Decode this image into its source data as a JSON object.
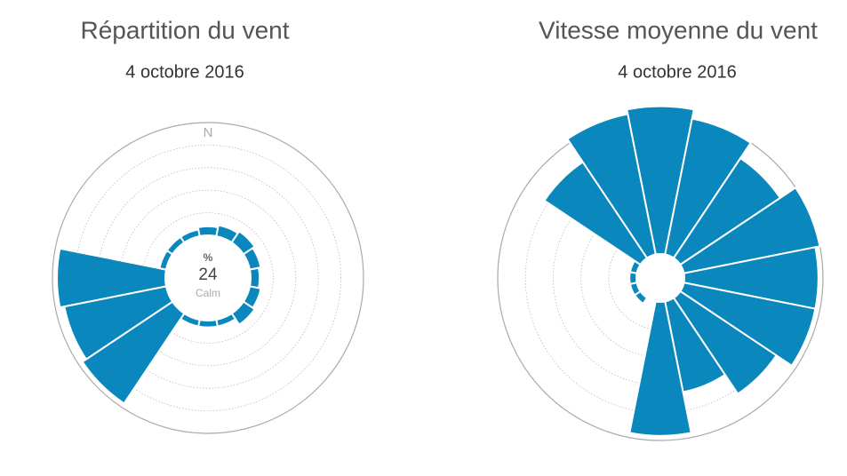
{
  "chart_data": [
    {
      "type": "polar-bar",
      "title": "Répartition du vent",
      "subtitle": "4 octobre 2016",
      "categories": [
        "N",
        null,
        null,
        null,
        null,
        null,
        null,
        null,
        null,
        null,
        null,
        null,
        null,
        null,
        null,
        null
      ],
      "values": [
        2,
        2.5,
        3,
        2.5,
        2,
        2.5,
        3,
        1.5,
        1.5,
        1.5,
        24,
        23,
        24,
        1.5,
        1.5,
        1.5
      ],
      "color": "#0a87bd",
      "ylim": [
        0,
        25
      ],
      "grid": true,
      "center_unit": "%",
      "calm_value": 24,
      "calm_label": "Calm"
    },
    {
      "type": "polar-bar",
      "title": "Vitesse moyenne du vent",
      "subtitle": "4 octobre 2016",
      "values": [
        32,
        30,
        26,
        30,
        29,
        29,
        25,
        20,
        29,
        0,
        1.5,
        1.5,
        1.5,
        1.5,
        25,
        31
      ],
      "color": "#0a87bd",
      "ylim": [
        0,
        30
      ],
      "grid": true
    }
  ]
}
